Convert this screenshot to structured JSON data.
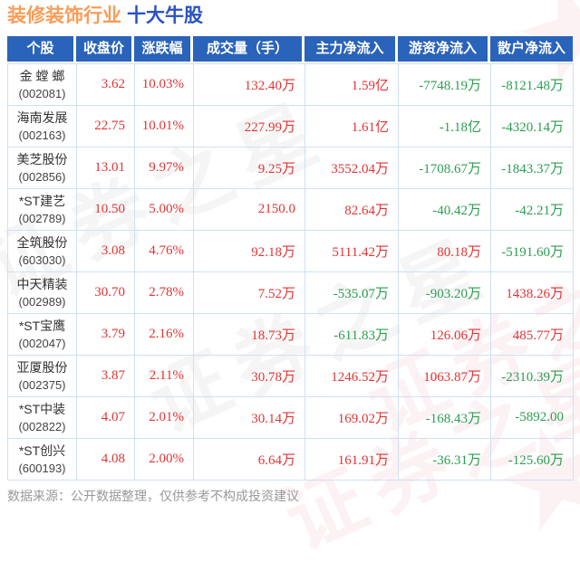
{
  "page": {
    "title_industry": "装修装饰行业",
    "title_suffix": "十大牛股",
    "footer": "数据来源：公开数据整理，仅供参考不构成投资建议",
    "watermark_text": "证券之星",
    "watermark_star": "★"
  },
  "colors": {
    "title_industry": "#f99d58",
    "title_suffix": "#2a52c4",
    "header_bg": "#2a63ba",
    "up_red": "#e23434",
    "down_green": "#2b9e51"
  },
  "table": {
    "headers": [
      "个股",
      "收盘价",
      "涨跌幅",
      "成交量（手）",
      "主力净流入",
      "游资净流入",
      "散户净流入"
    ],
    "rows": [
      {
        "name": "金 螳 螂",
        "code": "(002081)",
        "close": "3.62",
        "pct": "10.03%",
        "volume": "132.40万",
        "main": "1.59亿",
        "hot": "-7748.19万",
        "retail": "-8121.48万"
      },
      {
        "name": "海南发展",
        "code": "(002163)",
        "close": "22.75",
        "pct": "10.01%",
        "volume": "227.99万",
        "main": "1.61亿",
        "hot": "-1.18亿",
        "retail": "-4320.14万"
      },
      {
        "name": "美芝股份",
        "code": "(002856)",
        "close": "13.01",
        "pct": "9.97%",
        "volume": "9.25万",
        "main": "3552.04万",
        "hot": "-1708.67万",
        "retail": "-1843.37万"
      },
      {
        "name": "*ST建艺",
        "code": "(002789)",
        "close": "10.50",
        "pct": "5.00%",
        "volume": "2150.0",
        "main": "82.64万",
        "hot": "-40.42万",
        "retail": "-42.21万"
      },
      {
        "name": "全筑股份",
        "code": "(603030)",
        "close": "3.08",
        "pct": "4.76%",
        "volume": "92.18万",
        "main": "5111.42万",
        "hot": "80.18万",
        "retail": "-5191.60万"
      },
      {
        "name": "中天精装",
        "code": "(002989)",
        "close": "30.70",
        "pct": "2.78%",
        "volume": "7.52万",
        "main": "-535.07万",
        "hot": "-903.20万",
        "retail": "1438.26万"
      },
      {
        "name": "*ST宝鹰",
        "code": "(002047)",
        "close": "3.79",
        "pct": "2.16%",
        "volume": "18.73万",
        "main": "-611.83万",
        "hot": "126.06万",
        "retail": "485.77万"
      },
      {
        "name": "亚厦股份",
        "code": "(002375)",
        "close": "3.87",
        "pct": "2.11%",
        "volume": "30.78万",
        "main": "1246.52万",
        "hot": "1063.87万",
        "retail": "-2310.39万"
      },
      {
        "name": "*ST中装",
        "code": "(002822)",
        "close": "4.07",
        "pct": "2.01%",
        "volume": "30.14万",
        "main": "169.02万",
        "hot": "-168.43万",
        "retail": "-5892.00"
      },
      {
        "name": "*ST创兴",
        "code": "(600193)",
        "close": "4.08",
        "pct": "2.00%",
        "volume": "6.64万",
        "main": "161.91万",
        "hot": "-36.31万",
        "retail": "-125.60万"
      }
    ]
  }
}
